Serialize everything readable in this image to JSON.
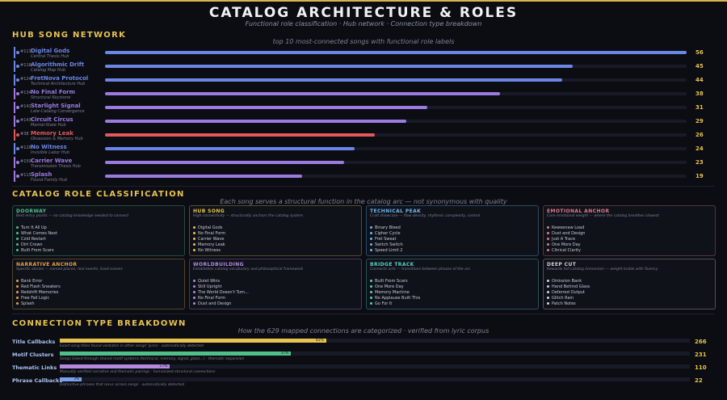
{
  "header": {
    "title": "CATALOG  ARCHITECTURE  &  ROLES",
    "subtitle": "Functional role classification · Hub network · Connection type breakdown"
  },
  "colors": {
    "gold": "#e7c34f",
    "blue": "#6b86e6",
    "purple": "#9b7be0",
    "red": "#e05a5a",
    "green": "#4fc08a"
  },
  "hub_section": {
    "heading": "HUB  SONG  NETWORK",
    "caption": "top 10 most-connected songs with functional role labels"
  },
  "chart_data": [
    {
      "type": "bar",
      "title": "top 10 most-connected songs with functional role labels",
      "categories": [
        "Digital Gods",
        "Algorithmic Drift",
        "FretNova Protocol",
        "No Final Form",
        "Starlight Signal",
        "Circuit Circus",
        "Memory Leak",
        "No Witness",
        "Carrier Wave",
        "Splash"
      ],
      "ranks": [
        "#113",
        "#118",
        "#124",
        "#134",
        "#141",
        "#143",
        "#38",
        "#128",
        "#150",
        "#115"
      ],
      "roles": [
        "Central Thesis Hub",
        "Catalog Map Hub",
        "Technical Architecture Hub",
        "Structural Keystone",
        "Late-Catalog Convergence",
        "Mental-State Hub",
        "Obsession & Memory Hub",
        "Invisible Labor Hub",
        "Transmission Thesis Hub",
        "Found Family Hub"
      ],
      "colors": [
        "#6b86e6",
        "#6b86e6",
        "#6b86e6",
        "#9b7be0",
        "#9b7be0",
        "#9b7be0",
        "#e05a5a",
        "#6b86e6",
        "#9b7be0",
        "#9b7be0"
      ],
      "values": [
        56,
        45,
        44,
        38,
        31,
        29,
        26,
        24,
        23,
        19
      ],
      "ylim": [
        0,
        56
      ]
    },
    {
      "type": "bar",
      "title": "How the 629 mapped connections are categorized  ·  verified from lyric corpus",
      "categories": [
        "Title Callbacks",
        "Motif Clusters",
        "Thematic Links",
        "Phrase Callbacks"
      ],
      "values": [
        266,
        231,
        110,
        22
      ],
      "percents": [
        "42%",
        "37%",
        "17%",
        "3%"
      ],
      "notes": [
        "Exact song titles found verbatim in other songs' lyrics  ·  automatically detected",
        "Songs linked through shared motif systems (technical, memory, signal, glass...)  ·  thematic expansion",
        "Manually verified narrative and thematic pairings  ·  humanized structural connections",
        "Distinctive phrases that recur across songs  ·  automatically detected"
      ],
      "colors": [
        "#e7c34f",
        "#4fc08a",
        "#b48ae0",
        "#7aa0f0"
      ],
      "total": 629
    }
  ],
  "roles_section": {
    "heading": "CATALOG  ROLE  CLASSIFICATION",
    "caption": "Each song serves a structural function in the catalog arc — not synonymous with quality",
    "cards": [
      {
        "title": "DOORWAY",
        "color": "#4fc08a",
        "desc": "Best entry points — no catalog knowledge needed to connect",
        "items": [
          "Turn It All Up",
          "What Comes Next",
          "Cold Restart",
          "Dirt Crown",
          "Built From Scars"
        ]
      },
      {
        "title": "HUB SONG",
        "color": "#e7c34f",
        "desc": "High connectivity — structurally anchors the catalog system",
        "items": [
          "Digital Gods",
          "No Final Form",
          "Carrier Wave",
          "Memory Leak",
          "No Witness"
        ]
      },
      {
        "title": "TECHNICAL PEAK",
        "color": "#6fb6f0",
        "desc": "Craft showcase — flow density, rhythmic complexity, control",
        "items": [
          "Binary Bleed",
          "Cipher Cycle",
          "Fret Sweat",
          "Switch Switch",
          "Speed Limit 2"
        ]
      },
      {
        "title": "EMOTIONAL ANCHOR",
        "color": "#e07a8a",
        "desc": "Core emotional weight — where the catalog breathes slowest",
        "items": [
          "Keweenaw Load",
          "Dust and Design",
          "Just A Trace",
          "One More Day",
          "Clinical Clarity"
        ]
      },
      {
        "title": "NARRATIVE ANCHOR",
        "color": "#e7a14f",
        "desc": "Specific stories — named places, real events, lived scenes",
        "items": [
          "Bank Error",
          "Red Flash Sneakers",
          "Redshift Memories",
          "Free Fall Logic",
          "Splash"
        ]
      },
      {
        "title": "WORLDBUILDING",
        "color": "#b48ae0",
        "desc": "Establishes catalog vocabulary and philosophical framework",
        "items": [
          "Quiet Wins",
          "Still Upright",
          "The World Doesn't Turn...",
          "No Final Form",
          "Dust and Design"
        ]
      },
      {
        "title": "BRIDGE TRACK",
        "color": "#5ad0c8",
        "desc": "Connects acts — transitions between phases of the arc",
        "items": [
          "Built From Scars",
          "One More Day",
          "Memory Machine",
          "No Applause Built This",
          "Go For It"
        ]
      },
      {
        "title": "DEEP CUT",
        "color": "#d0d3dc",
        "desc": "Rewards full catalog immersion — weight builds with fluency",
        "items": [
          "Omission Bank",
          "Hand Behind Glass",
          "Deferred Output",
          "Glitch Rain",
          "Patch Notes"
        ]
      }
    ]
  },
  "connections_section": {
    "heading": "CONNECTION  TYPE  BREAKDOWN",
    "caption": "How the 629 mapped connections are categorized  ·  verified from lyric corpus"
  }
}
